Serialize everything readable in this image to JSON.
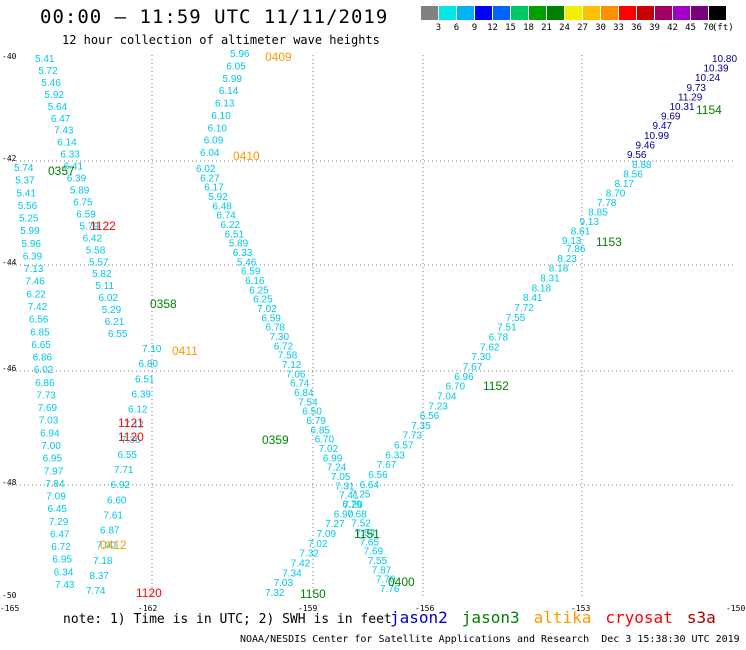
{
  "header": {
    "title": "00:00 — 11:59 UTC 11/11/2019",
    "subtitle": "12 hour collection of altimeter wave heights"
  },
  "scale": {
    "colors": [
      "#808080",
      "#00e8e8",
      "#00b4f0",
      "#0000ff",
      "#0064ff",
      "#00c864",
      "#00a000",
      "#008000",
      "#f0f000",
      "#ffc000",
      "#ff9000",
      "#ff0000",
      "#c80000",
      "#a00064",
      "#a000c8",
      "#780078",
      "#000000"
    ],
    "labels": [
      "3",
      "6",
      "9",
      "12",
      "15",
      "18",
      "21",
      "24",
      "27",
      "30",
      "33",
      "36",
      "39",
      "42",
      "45",
      "70"
    ],
    "unit": "(ft)"
  },
  "axes": {
    "lat_labels": [
      "-40",
      "-42",
      "-44",
      "-46",
      "-48",
      "-50"
    ],
    "lon_labels": [
      "-165",
      "-162",
      "-159",
      "-156",
      "-153",
      "-150"
    ]
  },
  "time_labels": [
    {
      "text": "0409",
      "color": "#ff9900"
    },
    {
      "text": "0410",
      "color": "#ff9900"
    },
    {
      "text": "0357",
      "color": "#008000"
    },
    {
      "text": "1122",
      "color": "#ff0000"
    },
    {
      "text": "0358",
      "color": "#008000"
    },
    {
      "text": "0411",
      "color": "#ff9900"
    },
    {
      "text": "1121",
      "color": "#ff0000"
    },
    {
      "text": "1120",
      "color": "#ff0000"
    },
    {
      "text": "0359",
      "color": "#008000"
    },
    {
      "text": "0412",
      "color": "#ff9900"
    },
    {
      "text": "1120",
      "color": "#ff0000"
    },
    {
      "text": "1150",
      "color": "#008000"
    },
    {
      "text": "1151",
      "color": "#008000"
    },
    {
      "text": "0400",
      "color": "#008000"
    },
    {
      "text": "1152",
      "color": "#008000"
    },
    {
      "text": "1153",
      "color": "#008000"
    },
    {
      "text": "1154",
      "color": "#008000"
    }
  ],
  "tracks": [
    {
      "name": "altika-0409",
      "color": "#00c8e6",
      "values": [
        "5.96",
        "6.05",
        "5.99",
        "6.14",
        "6.13",
        "6.10",
        "6.10",
        "6.09",
        "6.04"
      ]
    },
    {
      "name": "altika-0410",
      "color": "#00c8e6",
      "values": [
        "6.02",
        "6.27",
        "6.17",
        "5.92",
        "6.48",
        "6.74",
        "6.22",
        "6.51",
        "5.89",
        "6.33",
        "5.46",
        "6.59",
        "6.16",
        "6.25",
        "6.25",
        "7.02",
        "6.59",
        "6.78",
        "7.30",
        "6.72",
        "7.58",
        "7.12",
        "7.06",
        "6.74",
        "6.84",
        "7.54",
        "6.50",
        "6.79",
        "6.85",
        "6.70",
        "7.02",
        "6.99",
        "7.24",
        "7.05",
        "7.31",
        "7.41",
        "7.29",
        "7.68",
        "7.52",
        "7.54",
        "7.65",
        "7.69",
        "7.55",
        "7.87",
        "7.70",
        "7.76"
      ]
    },
    {
      "name": "jason3-0357",
      "color": "#00c8e6",
      "values": [
        "5.41",
        "5.72",
        "5.46",
        "5.92",
        "5.64",
        "6.47",
        "7.43",
        "6.14",
        "6.33",
        "6.41",
        "6.39",
        "5.89",
        "6.75",
        "6.59",
        "5.79",
        "6.42",
        "5.58",
        "5.57",
        "5.82",
        "5.11",
        "6.02",
        "5.29",
        "6.21",
        "6.55"
      ]
    },
    {
      "name": "cryosat-1122",
      "color": "#00c8e6",
      "values": [
        "5.74",
        "5.37",
        "5.41",
        "5.56",
        "5.25",
        "5.99",
        "5.96",
        "6.39",
        "7.13",
        "7.46",
        "6.22",
        "7.42",
        "6.56",
        "6.85",
        "6.65",
        "6.86",
        "6.02",
        "6.86",
        "7.73",
        "7.69",
        "7.03",
        "6.94",
        "7.00",
        "6.95",
        "7.97",
        "7.84",
        "7.09",
        "6.45",
        "7.29",
        "6.47",
        "6.72",
        "6.95",
        "6.34",
        "7.43"
      ]
    },
    {
      "name": "cryosat-1121",
      "color": "#00c8e6",
      "values": [
        "7.10",
        "6.80",
        "6.51",
        "6.39",
        "6.12",
        "7.12",
        "7.36",
        "6.55",
        "7.71",
        "6.92",
        "6.60",
        "7.61",
        "6.87",
        "7.00",
        "7.18",
        "8.37",
        "7.74"
      ]
    },
    {
      "name": "jason3-1150",
      "color": "#00c8e6",
      "values": [
        "7.32",
        "7.03",
        "7.34",
        "7.42",
        "7.32",
        "7.02",
        "7.09",
        "7.27",
        "6.90",
        "6.70",
        "7.25",
        "6.64",
        "6.56",
        "7.67",
        "6.33",
        "6.57",
        "7.73",
        "7.35",
        "6.56",
        "7.23",
        "7.04",
        "6.70",
        "6.96",
        "7.67",
        "7.30",
        "7.62",
        "6.78",
        "7.51",
        "7.55",
        "7.72",
        "8.41",
        "8.18",
        "8.31",
        "8.18",
        "8.23",
        "7.86"
      ]
    },
    {
      "name": "jason3-1153",
      "color": "#00c8e6",
      "values": [
        "9.13",
        "8.61",
        "9.13",
        "8.85",
        "7.78",
        "8.70",
        "8.17",
        "8.56",
        "8.88"
      ]
    },
    {
      "name": "jason2-1154",
      "color": "#00008c",
      "values": [
        "9.56",
        "9.46",
        "10.99",
        "9.47",
        "9.69",
        "10.31",
        "11.29",
        "9.73",
        "10.24",
        "10.39",
        "10.80"
      ]
    }
  ],
  "footer": {
    "note": "note:  1) Time is in UTC; 2) SWH is in feet",
    "satellites": [
      {
        "name": "jason2",
        "color": "#0000cc"
      },
      {
        "name": "jason3",
        "color": "#008000"
      },
      {
        "name": "altika",
        "color": "#ff9900"
      },
      {
        "name": "cryosat",
        "color": "#ff0000"
      },
      {
        "name": "s3a",
        "color": "#aa0000"
      }
    ],
    "credit": "NOAA/NESDIS Center for Satellite Applications and Research",
    "date": "Dec  3 15:38:30 UTC 2019"
  }
}
